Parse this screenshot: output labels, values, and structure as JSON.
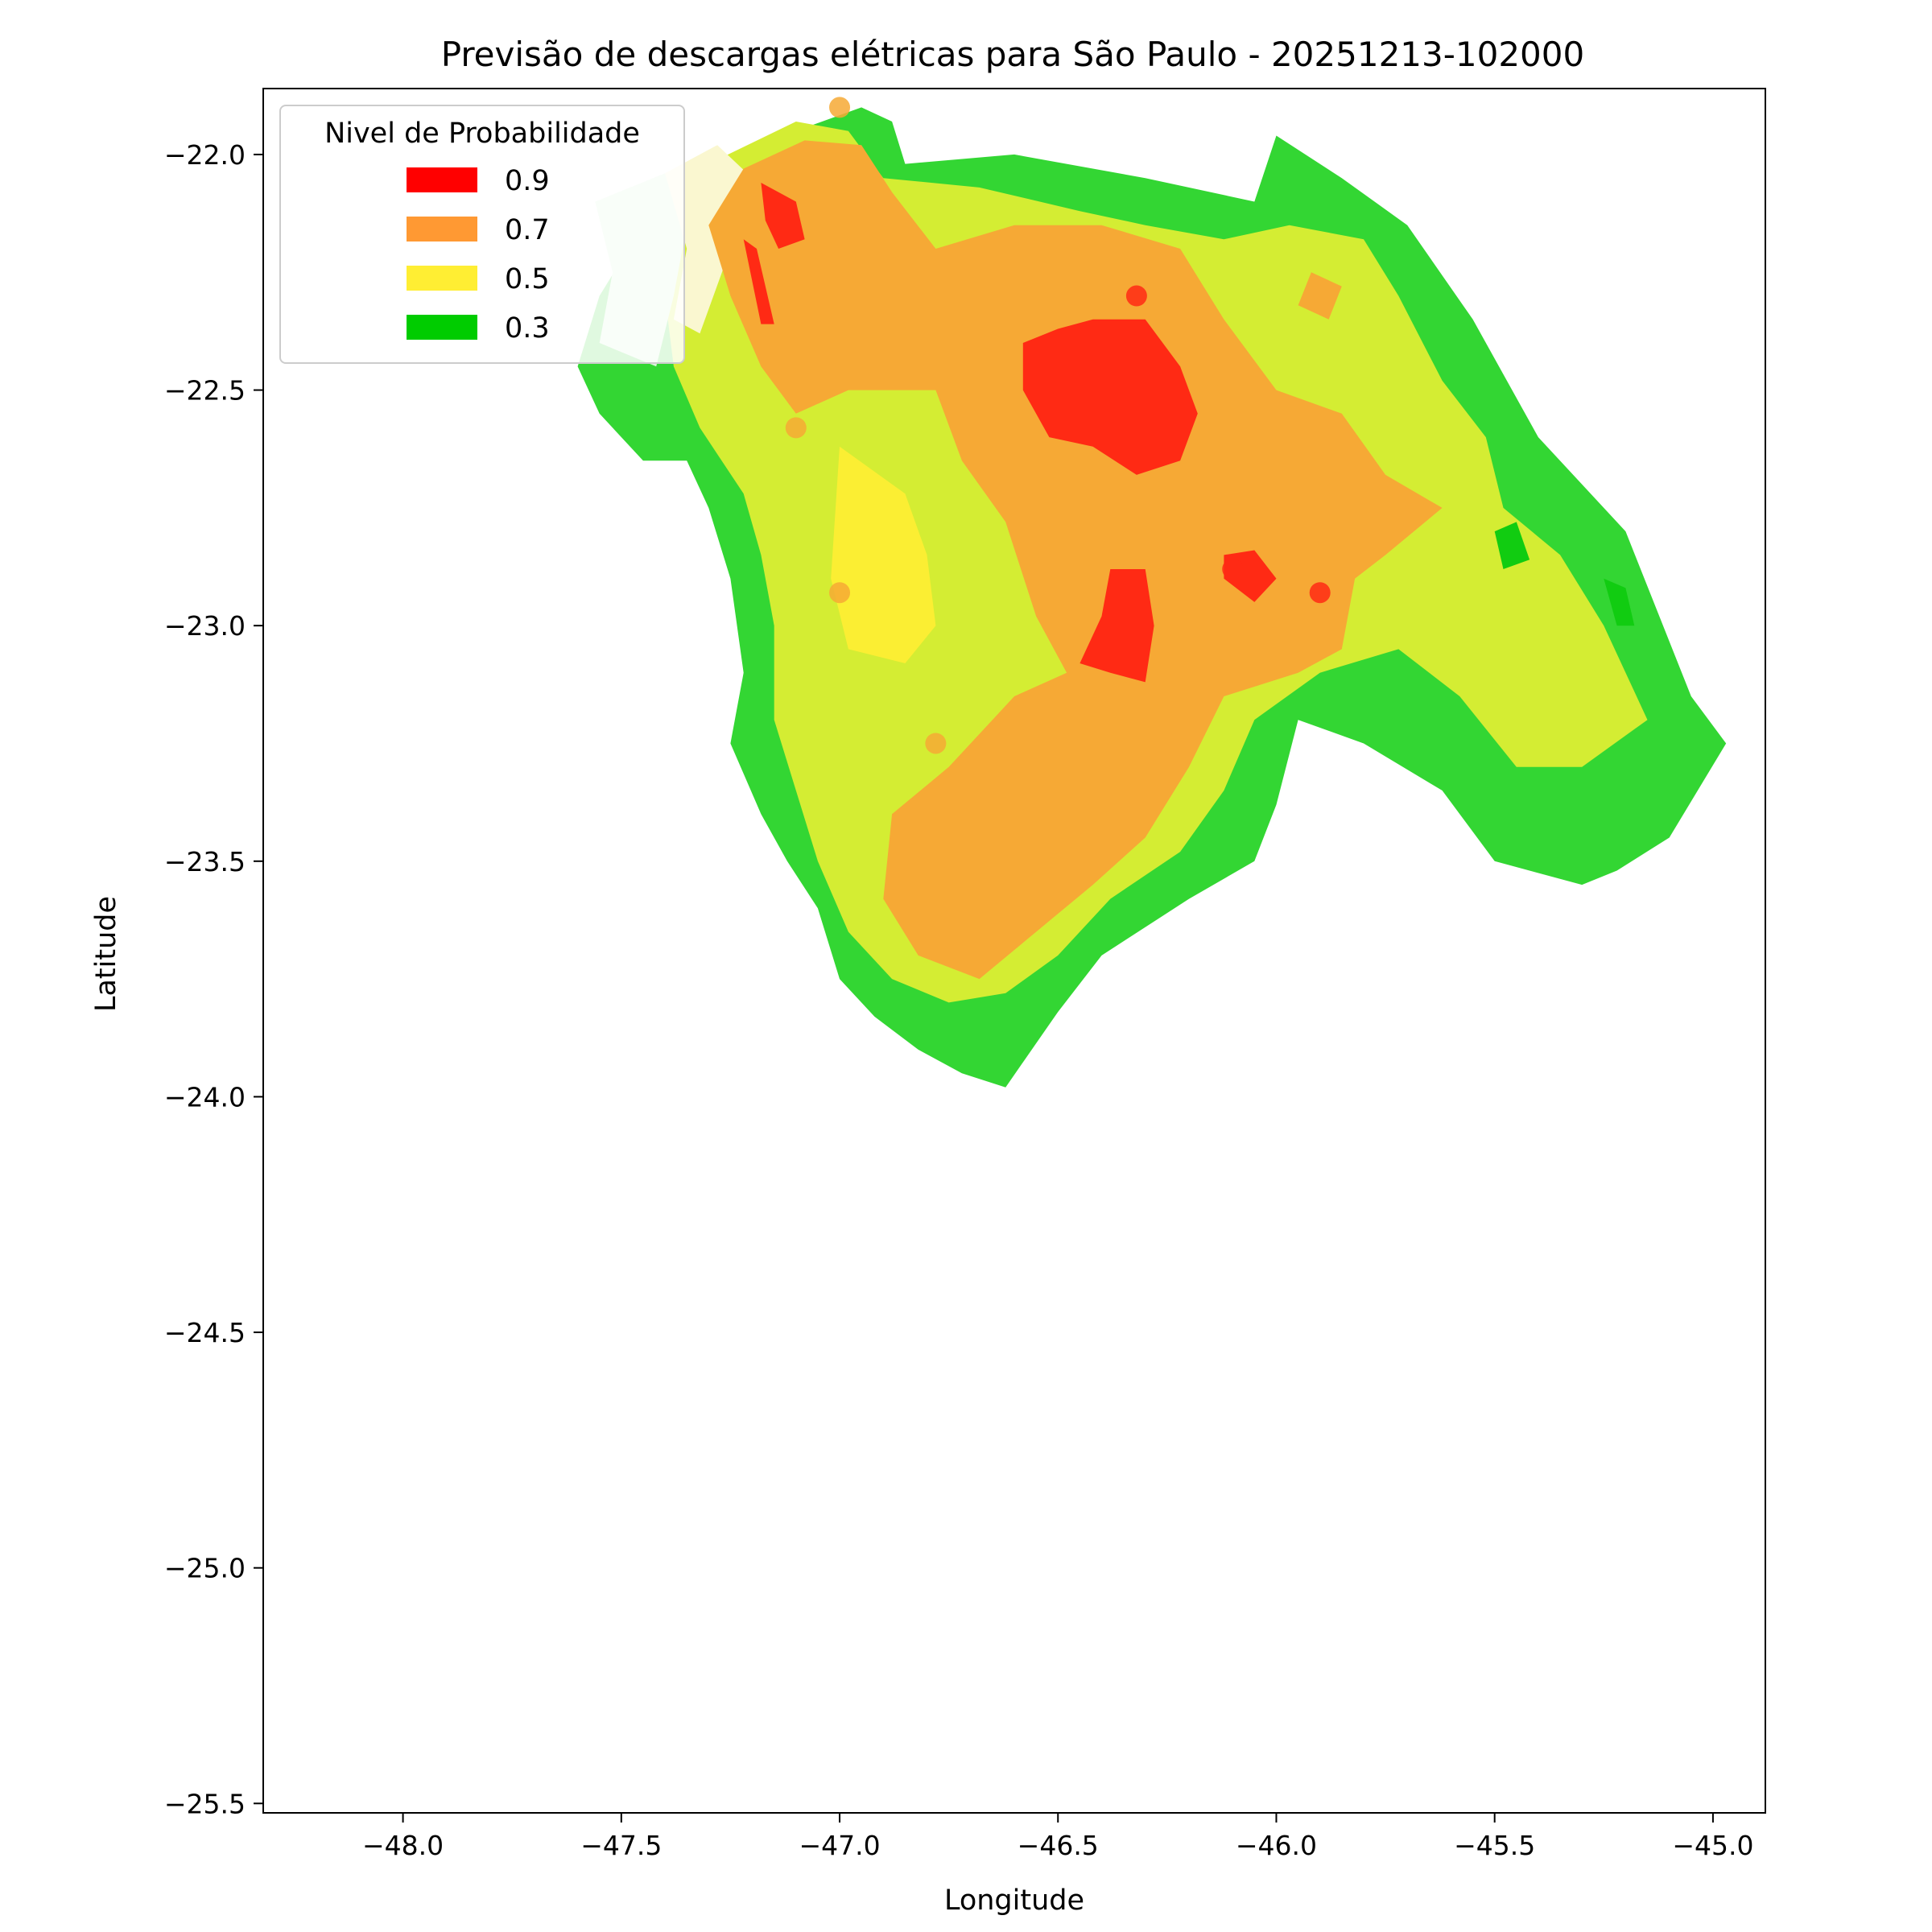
{
  "chart_data": {
    "type": "heatmap",
    "title": "Previsão de descargas elétricas para São Paulo - 20251213-102000",
    "xlabel": "Longitude",
    "ylabel": "Latitude",
    "xlim": [
      -48.32,
      -44.88
    ],
    "ylim": [
      -25.52,
      -21.86
    ],
    "x_ticks": [
      -48.0,
      -47.5,
      -47.0,
      -46.5,
      -46.0,
      -45.5,
      -45.0
    ],
    "x_tick_labels": [
      "−48.0",
      "−47.5",
      "−47.0",
      "−46.5",
      "−46.0",
      "−45.5",
      "−45.0"
    ],
    "y_ticks": [
      -22.0,
      -22.5,
      -23.0,
      -23.5,
      -24.0,
      -24.5,
      -25.0,
      -25.5
    ],
    "y_tick_labels": [
      "−22.0",
      "−22.5",
      "−23.0",
      "−23.5",
      "−24.0",
      "−24.5",
      "−25.0",
      "−25.5"
    ],
    "grid": false,
    "legend": {
      "title": "Nivel de Probabilidade",
      "placement": "upper-left",
      "entries": [
        {
          "label": "0.9",
          "color": "#ff0000"
        },
        {
          "label": "0.7",
          "color": "#ff9933"
        },
        {
          "label": "0.5",
          "color": "#ffee33"
        },
        {
          "label": "0.3",
          "color": "#00cc00"
        }
      ]
    },
    "regions": [
      {
        "level": "0.3",
        "color": "#33d633",
        "points": [
          [
            -47.45,
            -22.15
          ],
          [
            -47.25,
            -22.0
          ],
          [
            -46.95,
            -21.9
          ],
          [
            -46.88,
            -21.93
          ],
          [
            -46.85,
            -22.02
          ],
          [
            -46.6,
            -22.0
          ],
          [
            -46.3,
            -22.05
          ],
          [
            -46.05,
            -22.1
          ],
          [
            -46.0,
            -21.96
          ],
          [
            -45.85,
            -22.05
          ],
          [
            -45.7,
            -22.15
          ],
          [
            -45.55,
            -22.35
          ],
          [
            -45.4,
            -22.6
          ],
          [
            -45.2,
            -22.8
          ],
          [
            -45.05,
            -23.15
          ],
          [
            -44.97,
            -23.25
          ],
          [
            -45.1,
            -23.45
          ],
          [
            -45.22,
            -23.52
          ],
          [
            -45.3,
            -23.55
          ],
          [
            -45.5,
            -23.5
          ],
          [
            -45.62,
            -23.35
          ],
          [
            -45.8,
            -23.25
          ],
          [
            -45.95,
            -23.2
          ],
          [
            -46.0,
            -23.38
          ],
          [
            -46.05,
            -23.5
          ],
          [
            -46.2,
            -23.58
          ],
          [
            -46.4,
            -23.7
          ],
          [
            -46.5,
            -23.82
          ],
          [
            -46.62,
            -23.98
          ],
          [
            -46.72,
            -23.95
          ],
          [
            -46.82,
            -23.9
          ],
          [
            -46.92,
            -23.83
          ],
          [
            -47.0,
            -23.75
          ],
          [
            -47.05,
            -23.6
          ],
          [
            -47.12,
            -23.5
          ],
          [
            -47.18,
            -23.4
          ],
          [
            -47.25,
            -23.25
          ],
          [
            -47.22,
            -23.1
          ],
          [
            -47.25,
            -22.9
          ],
          [
            -47.3,
            -22.75
          ],
          [
            -47.35,
            -22.65
          ],
          [
            -47.45,
            -22.65
          ],
          [
            -47.55,
            -22.55
          ],
          [
            -47.6,
            -22.45
          ],
          [
            -47.55,
            -22.3
          ]
        ]
      },
      {
        "level": "0.5",
        "color": "#d4ed33",
        "points": [
          [
            -47.42,
            -22.18
          ],
          [
            -47.3,
            -22.02
          ],
          [
            -47.1,
            -21.93
          ],
          [
            -46.98,
            -21.95
          ],
          [
            -46.9,
            -22.05
          ],
          [
            -46.68,
            -22.07
          ],
          [
            -46.45,
            -22.12
          ],
          [
            -46.3,
            -22.15
          ],
          [
            -46.12,
            -22.18
          ],
          [
            -45.97,
            -22.15
          ],
          [
            -45.8,
            -22.18
          ],
          [
            -45.72,
            -22.3
          ],
          [
            -45.62,
            -22.48
          ],
          [
            -45.52,
            -22.6
          ],
          [
            -45.48,
            -22.75
          ],
          [
            -45.35,
            -22.85
          ],
          [
            -45.25,
            -23.0
          ],
          [
            -45.15,
            -23.2
          ],
          [
            -45.3,
            -23.3
          ],
          [
            -45.45,
            -23.3
          ],
          [
            -45.58,
            -23.15
          ],
          [
            -45.72,
            -23.05
          ],
          [
            -45.9,
            -23.1
          ],
          [
            -46.05,
            -23.2
          ],
          [
            -46.12,
            -23.35
          ],
          [
            -46.22,
            -23.48
          ],
          [
            -46.38,
            -23.58
          ],
          [
            -46.5,
            -23.7
          ],
          [
            -46.62,
            -23.78
          ],
          [
            -46.75,
            -23.8
          ],
          [
            -46.88,
            -23.75
          ],
          [
            -46.98,
            -23.65
          ],
          [
            -47.05,
            -23.5
          ],
          [
            -47.1,
            -23.35
          ],
          [
            -47.15,
            -23.2
          ],
          [
            -47.15,
            -23.0
          ],
          [
            -47.18,
            -22.85
          ],
          [
            -47.22,
            -22.72
          ],
          [
            -47.32,
            -22.58
          ],
          [
            -47.38,
            -22.45
          ],
          [
            -47.4,
            -22.3
          ]
        ]
      },
      {
        "level": "0.3",
        "color": "#d8f5d8",
        "points": [
          [
            -47.56,
            -22.1
          ],
          [
            -47.4,
            -22.04
          ],
          [
            -47.35,
            -22.15
          ],
          [
            -47.38,
            -22.3
          ],
          [
            -47.42,
            -22.45
          ],
          [
            -47.55,
            -22.4
          ],
          [
            -47.52,
            -22.25
          ]
        ]
      },
      {
        "level": "0.5",
        "color": "#faf7d0",
        "points": [
          [
            -47.4,
            -22.04
          ],
          [
            -47.28,
            -21.98
          ],
          [
            -47.2,
            -22.05
          ],
          [
            -47.25,
            -22.2
          ],
          [
            -47.32,
            -22.38
          ],
          [
            -47.38,
            -22.35
          ],
          [
            -47.35,
            -22.2
          ]
        ]
      },
      {
        "level": "0.5",
        "color": "#fbee33",
        "points": [
          [
            -47.0,
            -22.62
          ],
          [
            -46.85,
            -22.72
          ],
          [
            -46.8,
            -22.85
          ],
          [
            -46.78,
            -23.0
          ],
          [
            -46.85,
            -23.08
          ],
          [
            -46.98,
            -23.05
          ],
          [
            -47.02,
            -22.9
          ]
        ]
      },
      {
        "level": "0.7",
        "color": "#f6a935",
        "points": [
          [
            -47.3,
            -22.15
          ],
          [
            -47.22,
            -22.03
          ],
          [
            -47.08,
            -21.97
          ],
          [
            -46.95,
            -21.98
          ],
          [
            -46.88,
            -22.08
          ],
          [
            -46.78,
            -22.2
          ],
          [
            -46.6,
            -22.15
          ],
          [
            -46.4,
            -22.15
          ],
          [
            -46.22,
            -22.2
          ],
          [
            -46.12,
            -22.35
          ],
          [
            -46.0,
            -22.5
          ],
          [
            -45.85,
            -22.55
          ],
          [
            -45.75,
            -22.68
          ],
          [
            -45.62,
            -22.75
          ],
          [
            -45.75,
            -22.85
          ],
          [
            -45.82,
            -22.9
          ],
          [
            -45.85,
            -23.05
          ],
          [
            -45.95,
            -23.1
          ],
          [
            -46.12,
            -23.15
          ],
          [
            -46.2,
            -23.3
          ],
          [
            -46.3,
            -23.45
          ],
          [
            -46.42,
            -23.55
          ],
          [
            -46.55,
            -23.65
          ],
          [
            -46.68,
            -23.75
          ],
          [
            -46.82,
            -23.7
          ],
          [
            -46.9,
            -23.58
          ],
          [
            -46.88,
            -23.4
          ],
          [
            -46.75,
            -23.3
          ],
          [
            -46.6,
            -23.15
          ],
          [
            -46.48,
            -23.1
          ],
          [
            -46.55,
            -22.98
          ],
          [
            -46.62,
            -22.78
          ],
          [
            -46.72,
            -22.65
          ],
          [
            -46.78,
            -22.5
          ],
          [
            -46.98,
            -22.5
          ],
          [
            -47.1,
            -22.55
          ],
          [
            -47.18,
            -22.45
          ],
          [
            -47.25,
            -22.3
          ]
        ]
      },
      {
        "level": "0.7",
        "color": "#f6a935",
        "points": [
          [
            -45.92,
            -22.25
          ],
          [
            -45.85,
            -22.28
          ],
          [
            -45.88,
            -22.35
          ],
          [
            -45.95,
            -22.32
          ]
        ]
      },
      {
        "level": "0.9",
        "color": "#ff2a14",
        "points": [
          [
            -46.58,
            -22.4
          ],
          [
            -46.5,
            -22.37
          ],
          [
            -46.42,
            -22.35
          ],
          [
            -46.3,
            -22.35
          ],
          [
            -46.22,
            -22.45
          ],
          [
            -46.18,
            -22.55
          ],
          [
            -46.22,
            -22.65
          ],
          [
            -46.32,
            -22.68
          ],
          [
            -46.42,
            -22.62
          ],
          [
            -46.52,
            -22.6
          ],
          [
            -46.58,
            -22.5
          ]
        ]
      },
      {
        "level": "0.9",
        "color": "#ff2a14",
        "points": [
          [
            -46.38,
            -22.88
          ],
          [
            -46.3,
            -22.88
          ],
          [
            -46.28,
            -23.0
          ],
          [
            -46.3,
            -23.12
          ],
          [
            -46.38,
            -23.1
          ],
          [
            -46.45,
            -23.08
          ],
          [
            -46.4,
            -22.98
          ]
        ]
      },
      {
        "level": "0.9",
        "color": "#ff2a14",
        "points": [
          [
            -46.12,
            -22.85
          ],
          [
            -46.05,
            -22.84
          ],
          [
            -46.0,
            -22.9
          ],
          [
            -46.05,
            -22.95
          ],
          [
            -46.12,
            -22.9
          ]
        ]
      },
      {
        "level": "0.9",
        "color": "#ff2a14",
        "points": [
          [
            -47.18,
            -22.06
          ],
          [
            -47.1,
            -22.1
          ],
          [
            -47.08,
            -22.18
          ],
          [
            -47.14,
            -22.2
          ],
          [
            -47.17,
            -22.14
          ]
        ]
      },
      {
        "level": "0.9",
        "color": "#ff2a14",
        "points": [
          [
            -47.22,
            -22.18
          ],
          [
            -47.19,
            -22.2
          ],
          [
            -47.15,
            -22.36
          ],
          [
            -47.18,
            -22.36
          ]
        ]
      },
      {
        "level": "0.3",
        "color": "#11cc11",
        "points": [
          [
            -45.5,
            -22.8
          ],
          [
            -45.45,
            -22.78
          ],
          [
            -45.42,
            -22.86
          ],
          [
            -45.48,
            -22.88
          ]
        ]
      },
      {
        "level": "0.3",
        "color": "#11cc11",
        "points": [
          [
            -45.25,
            -22.9
          ],
          [
            -45.2,
            -22.92
          ],
          [
            -45.18,
            -23.0
          ],
          [
            -45.22,
            -23.0
          ]
        ]
      }
    ],
    "points": [
      {
        "lon": -46.32,
        "lat": -22.3,
        "level": "0.9",
        "color": "#ff2a14"
      },
      {
        "lon": -46.1,
        "lat": -22.88,
        "level": "0.9",
        "color": "#ff2a14"
      },
      {
        "lon": -45.9,
        "lat": -22.93,
        "level": "0.9",
        "color": "#ff2a14"
      },
      {
        "lon": -47.0,
        "lat": -21.9,
        "level": "0.7",
        "color": "#f6a935"
      },
      {
        "lon": -47.1,
        "lat": -22.58,
        "level": "0.7",
        "color": "#f6a935"
      },
      {
        "lon": -47.0,
        "lat": -22.93,
        "level": "0.7",
        "color": "#f6a935"
      },
      {
        "lon": -46.78,
        "lat": -23.25,
        "level": "0.7",
        "color": "#f6a935"
      }
    ]
  }
}
